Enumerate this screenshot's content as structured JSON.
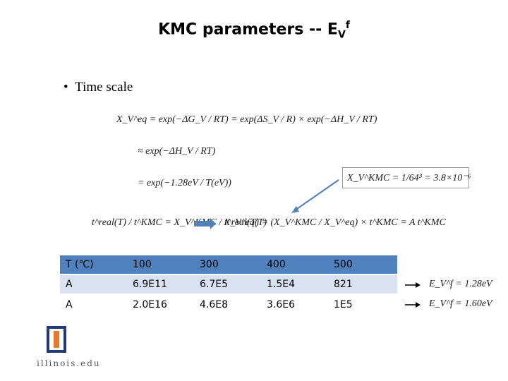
{
  "title": {
    "main": "KMC parameters -- E",
    "sub": "V",
    "sup": "f"
  },
  "bullet": "Time scale",
  "equations": [
    "X_V^eq = exp(−ΔG_V / RT) = exp(ΔS_V / R) × exp(−ΔH_V / RT)",
    "≈ exp(−ΔH_V / RT)",
    "= exp(−1.28eV / T(eV))",
    "t^real(T) / t^KMC = X_V^KMC / X_V^eq(T)",
    "t^real(T) = (X_V^KMC / X_V^eq) × t^KMC = A t^KMC",
    "X_V^KMC = 1/64³ = 3.8×10⁻⁶"
  ],
  "table": {
    "header": [
      "T (℃)",
      "100",
      "300",
      "400",
      "500"
    ],
    "rows": [
      [
        "A",
        "6.9E11",
        "6.7E5",
        "1.5E4",
        "821"
      ],
      [
        "A",
        "2.0E16",
        "4.6E8",
        "3.6E6",
        "1E5"
      ]
    ]
  },
  "notes": [
    "E_V^f = 1.28eV",
    "E_V^f = 1.60eV"
  ],
  "logo": "illinois.edu"
}
